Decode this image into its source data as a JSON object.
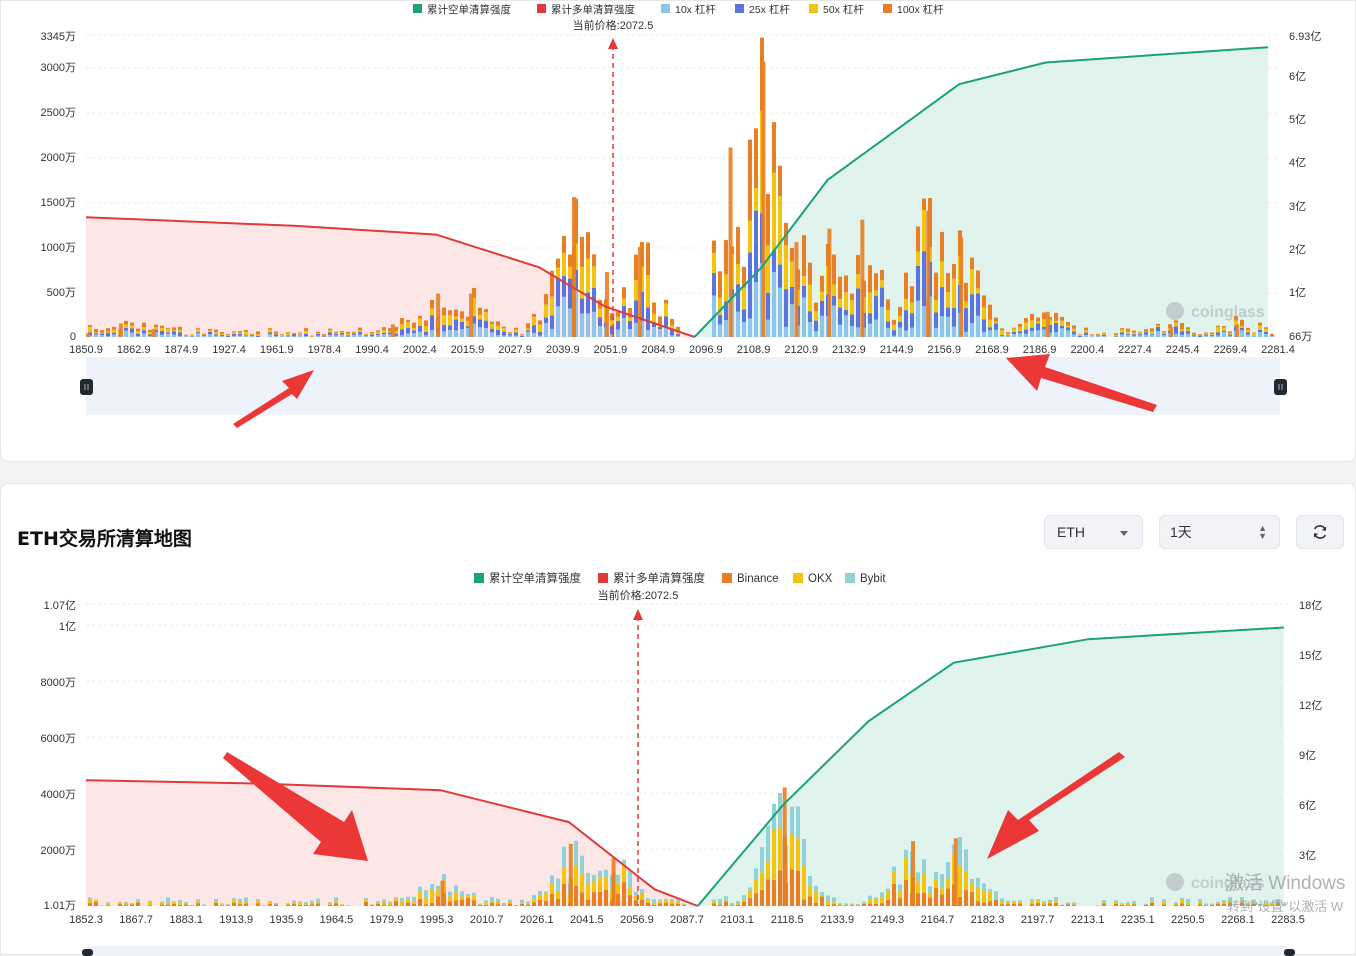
{
  "top_chart": {
    "legend": [
      {
        "label": "累计空单清算强度",
        "color": "#1aa37a"
      },
      {
        "label": "累计多单清算强度",
        "color": "#e03b3b"
      },
      {
        "label": "10x 杠杆",
        "color": "#8cc4ec"
      },
      {
        "label": "25x 杠杆",
        "color": "#5b74e0"
      },
      {
        "label": "50x 杠杆",
        "color": "#f2c40f"
      },
      {
        "label": "100x 杠杆",
        "color": "#e87f24"
      }
    ],
    "current_price_label": "当前价格:2072.5",
    "left_axis": [
      "3345万",
      "3000万",
      "2500万",
      "2000万",
      "1500万",
      "1000万",
      "500万",
      "0"
    ],
    "right_axis": [
      "6.93亿",
      "6亿",
      "5亿",
      "4亿",
      "3亿",
      "2亿",
      "1亿",
      "66万"
    ],
    "x_ticks": [
      "1850.9",
      "1862.9",
      "1874.9",
      "1927.4",
      "1961.9",
      "1978.4",
      "1990.4",
      "2002.4",
      "2015.9",
      "2027.9",
      "2039.9",
      "2051.9",
      "2084.9",
      "2096.9",
      "2108.9",
      "2120.9",
      "2132.9",
      "2144.9",
      "2156.9",
      "2168.9",
      "2186.9",
      "2200.4",
      "2227.4",
      "2245.4",
      "2269.4",
      "2281.4"
    ],
    "watermark": "coinglass"
  },
  "bottom_chart": {
    "title": "ETH交易所清算地图",
    "controls": {
      "coin": "ETH",
      "range": "1天"
    },
    "legend": [
      {
        "label": "累计空单清算强度",
        "color": "#1aa37a"
      },
      {
        "label": "累计多单清算强度",
        "color": "#e03b3b"
      },
      {
        "label": "Binance",
        "color": "#e87f24"
      },
      {
        "label": "OKX",
        "color": "#f2c40f"
      },
      {
        "label": "Bybit",
        "color": "#8fd3d8"
      }
    ],
    "current_price_label": "当前价格:2072.5",
    "left_axis": [
      "1.07亿",
      "1亿",
      "8000万",
      "6000万",
      "4000万",
      "2000万",
      "1.01万"
    ],
    "right_axis": [
      "18亿",
      "15亿",
      "12亿",
      "9亿",
      "6亿",
      "3亿"
    ],
    "x_ticks": [
      "1852.3",
      "1867.7",
      "1883.1",
      "1913.9",
      "1935.9",
      "1964.5",
      "1979.9",
      "1995.3",
      "2010.7",
      "2026.1",
      "2041.5",
      "2056.9",
      "2087.7",
      "2103.1",
      "2118.5",
      "2133.9",
      "2149.3",
      "2164.7",
      "2182.3",
      "2197.7",
      "2213.1",
      "2235.1",
      "2250.5",
      "2268.1",
      "2283.5"
    ],
    "watermark": "coinglass",
    "os_overlay": {
      "line1": "激活 Windows",
      "line2": "转到\"设置\"以激活 W"
    }
  },
  "chart_data": [
    {
      "type": "bar",
      "title": "",
      "current_price": 2072.5,
      "x_range": [
        1850.9,
        2285.0
      ],
      "left_axis_range_wan": [
        0,
        3345
      ],
      "right_axis_range_yi": [
        0.0066,
        6.93
      ],
      "series": [
        {
          "name": "10x 杠杆",
          "values_wan": [
            {
              "x": 1850.9,
              "y": 40
            },
            {
              "x": 1862.9,
              "y": 150
            },
            {
              "x": 1874.9,
              "y": 90
            },
            {
              "x": 2245.4,
              "y": 110
            },
            {
              "x": 2269.4,
              "y": 140
            }
          ]
        },
        {
          "name": "25x 杠杆",
          "values_wan": [
            {
              "x": 1961.9,
              "y": 140
            },
            {
              "x": 1978.4,
              "y": 480
            },
            {
              "x": 1990.4,
              "y": 480
            },
            {
              "x": 2156.9,
              "y": 440
            },
            {
              "x": 2200.4,
              "y": 280
            }
          ]
        },
        {
          "name": "50x 杠杆",
          "values_wan": [
            {
              "x": 2027.9,
              "y": 1000
            },
            {
              "x": 2039.9,
              "y": 720
            },
            {
              "x": 2108.9,
              "y": 1050
            },
            {
              "x": 2120.9,
              "y": 1200
            },
            {
              "x": 2168.9,
              "y": 1100
            }
          ]
        },
        {
          "name": "100x 杠杆",
          "values_wan": [
            {
              "x": 2027.9,
              "y": 1550
            },
            {
              "x": 2051.9,
              "y": 1000
            },
            {
              "x": 2084.9,
              "y": 2100
            },
            {
              "x": 2096.9,
              "y": 3050
            },
            {
              "x": 2132.9,
              "y": 1300
            },
            {
              "x": 2156.9,
              "y": 1400
            }
          ]
        },
        {
          "name": "累计多单清算强度",
          "unit": "亿",
          "points": [
            {
              "x": 1850.9,
              "y": 2.75
            },
            {
              "x": 1927.4,
              "y": 2.55
            },
            {
              "x": 1978.4,
              "y": 2.35
            },
            {
              "x": 2015.9,
              "y": 1.6
            },
            {
              "x": 2039.9,
              "y": 0.7
            },
            {
              "x": 2072.5,
              "y": 0.0
            }
          ]
        },
        {
          "name": "累计空单清算强度",
          "unit": "亿",
          "points": [
            {
              "x": 2072.5,
              "y": 0.0
            },
            {
              "x": 2096.9,
              "y": 1.6
            },
            {
              "x": 2120.9,
              "y": 3.6
            },
            {
              "x": 2144.9,
              "y": 4.7
            },
            {
              "x": 2168.9,
              "y": 5.8
            },
            {
              "x": 2200.4,
              "y": 6.3
            },
            {
              "x": 2281.4,
              "y": 6.65
            }
          ]
        }
      ]
    },
    {
      "type": "bar",
      "title": "ETH交易所清算地图",
      "current_price": 2072.5,
      "x_range": [
        1852.3,
        2285.0
      ],
      "left_axis_range_wan": [
        1.01,
        10700
      ],
      "right_axis_range_yi": [
        0,
        18
      ],
      "series": [
        {
          "name": "Binance",
          "values_wan": [
            {
              "x": 1979.9,
              "y": 900
            },
            {
              "x": 2026.1,
              "y": 2200
            },
            {
              "x": 2041.5,
              "y": 1700
            },
            {
              "x": 2103.1,
              "y": 4200
            },
            {
              "x": 2149.3,
              "y": 2300
            },
            {
              "x": 2164.7,
              "y": 2400
            }
          ]
        },
        {
          "name": "OKX",
          "values_wan": [
            {
              "x": 2026.1,
              "y": 1000
            },
            {
              "x": 2041.5,
              "y": 800
            },
            {
              "x": 2103.1,
              "y": 2500
            },
            {
              "x": 2149.3,
              "y": 1000
            }
          ]
        },
        {
          "name": "Bybit",
          "values_wan": [
            {
              "x": 2041.5,
              "y": 1200
            },
            {
              "x": 2103.1,
              "y": 2400
            },
            {
              "x": 2149.3,
              "y": 1000
            }
          ]
        },
        {
          "name": "累计多单清算强度",
          "unit": "亿",
          "points": [
            {
              "x": 1852.3,
              "y": 7.5
            },
            {
              "x": 1913.9,
              "y": 7.3
            },
            {
              "x": 1979.9,
              "y": 6.9
            },
            {
              "x": 2026.1,
              "y": 5.0
            },
            {
              "x": 2056.9,
              "y": 1.0
            },
            {
              "x": 2072.5,
              "y": 0.0
            }
          ]
        },
        {
          "name": "累计空单清算强度",
          "unit": "亿",
          "points": [
            {
              "x": 2072.5,
              "y": 0.0
            },
            {
              "x": 2103.1,
              "y": 6.0
            },
            {
              "x": 2133.9,
              "y": 11.0
            },
            {
              "x": 2164.7,
              "y": 14.5
            },
            {
              "x": 2213.1,
              "y": 15.9
            },
            {
              "x": 2283.5,
              "y": 16.6
            }
          ]
        }
      ]
    }
  ]
}
